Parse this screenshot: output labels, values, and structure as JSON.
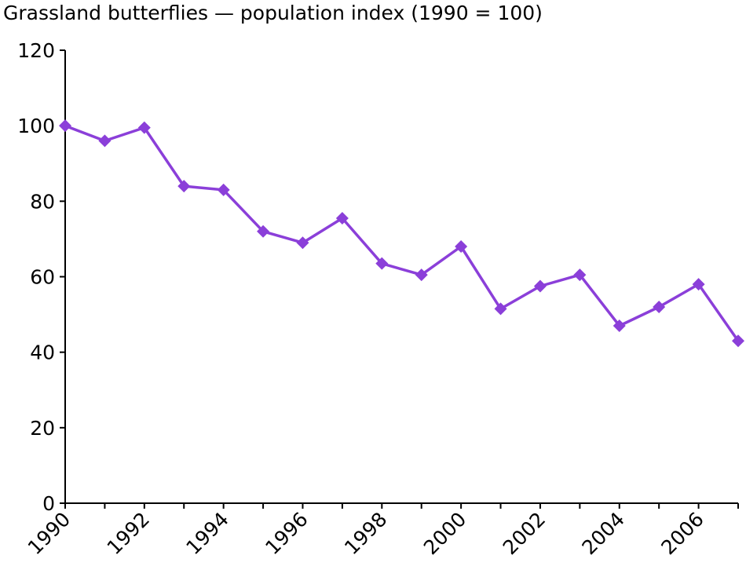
{
  "chart_data": {
    "type": "line",
    "title": "Grassland butterflies — population index (1990 = 100)",
    "xlabel": "",
    "ylabel": "",
    "ylim": [
      0,
      120
    ],
    "yticks": [
      0,
      20,
      40,
      60,
      80,
      100,
      120
    ],
    "xlim": [
      1990,
      2007
    ],
    "xticks": [
      1990,
      1992,
      1994,
      1996,
      1998,
      2000,
      2002,
      2004,
      2006
    ],
    "grid": false,
    "legend": "none",
    "series": [
      {
        "color": "#8b3fd9",
        "x": [
          1990,
          1991,
          1992,
          1993,
          1994,
          1995,
          1996,
          1997,
          1998,
          1999,
          2000,
          2001,
          2002,
          2003,
          2004,
          2005,
          2006,
          2007
        ],
        "values": [
          100,
          96,
          99.5,
          84,
          83,
          72,
          69,
          75.5,
          63.5,
          60.5,
          68,
          51.5,
          57.5,
          60.5,
          47,
          52,
          58,
          43
        ]
      }
    ]
  }
}
